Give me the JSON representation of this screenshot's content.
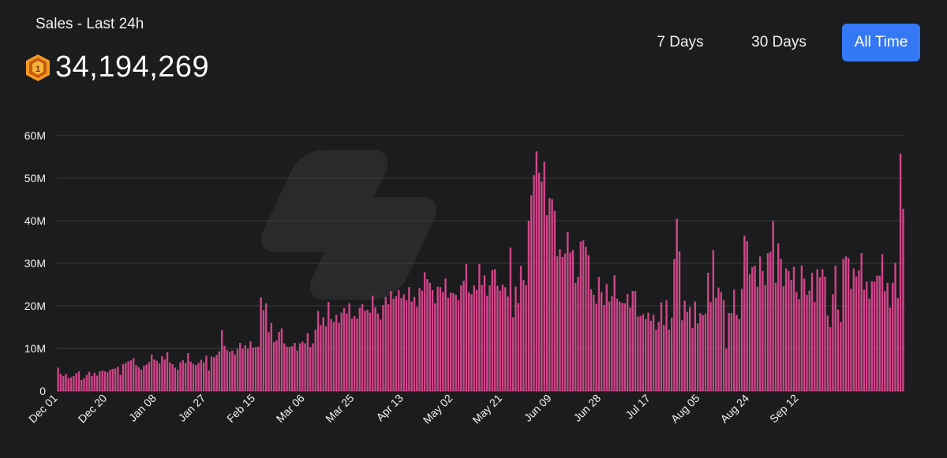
{
  "header": {
    "title": "Sales - Last 24h",
    "total": "34,194,269",
    "coin_icon": "coin-icon"
  },
  "range_buttons": [
    {
      "label": "7 Days",
      "active": false
    },
    {
      "label": "30 Days",
      "active": false
    },
    {
      "label": "All Time",
      "active": true
    }
  ],
  "colors": {
    "bar": "#d0468a",
    "active_button": "#3478f6",
    "background": "#1c1c1e"
  },
  "chart_data": {
    "type": "bar",
    "title": "",
    "xlabel": "",
    "ylabel": "",
    "ylim": [
      0,
      60
    ],
    "y_ticks": [
      0,
      10,
      20,
      30,
      40,
      50,
      60
    ],
    "y_tick_labels": [
      "0",
      "10M",
      "20M",
      "30M",
      "40M",
      "50M",
      "60M"
    ],
    "grid": true,
    "x_tick_labels": [
      "Dec 01",
      "Dec 20",
      "Jan 08",
      "Jan 27",
      "Feb 15",
      "Mar 06",
      "Mar 25",
      "Apr 13",
      "May 02",
      "May 21",
      "Jun 09",
      "Jun 28",
      "Jul 17",
      "Aug 05",
      "Aug 24",
      "Sep 12"
    ],
    "x_tick_every": 19,
    "units": "millions",
    "values": [
      5.5,
      4,
      3.5,
      4,
      3,
      3.2,
      3.5,
      4.2,
      4.6,
      2.6,
      3,
      3.8,
      4.5,
      3.5,
      4.3,
      3.6,
      4.6,
      4.8,
      4.6,
      4.4,
      5,
      5.2,
      5.3,
      5.7,
      3.8,
      6.3,
      6.6,
      7,
      7.2,
      7.7,
      6.1,
      5.6,
      5,
      5.9,
      6.2,
      6.8,
      8.6,
      7.4,
      7.1,
      6.5,
      8.2,
      7.4,
      9.1,
      6.7,
      6.3,
      5.5,
      5,
      6.7,
      7.2,
      6.6,
      8.9,
      6.9,
      6.4,
      6.1,
      6.6,
      7.3,
      6.7,
      8.3,
      4.8,
      8.1,
      7.9,
      8.5,
      9.3,
      14.3,
      10.6,
      9.6,
      9.2,
      9.5,
      8.6,
      9.9,
      11.3,
      9.9,
      10.7,
      9.9,
      11.7,
      10.2,
      10.3,
      10.4,
      22,
      19,
      20.6,
      13.8,
      16,
      11.5,
      11.9,
      13.9,
      14.7,
      11.2,
      10.4,
      10.4,
      10.5,
      11.3,
      9.5,
      11.2,
      11.6,
      11.2,
      13.6,
      10.3,
      11.2,
      14.4,
      18.8,
      15.5,
      17.3,
      15.2,
      20.9,
      16.9,
      16.2,
      17.9,
      16,
      18.4,
      19.5,
      18.2,
      20.6,
      17,
      17.6,
      17,
      19.5,
      20.4,
      18.9,
      19.1,
      18.4,
      22.4,
      19.7,
      18.2,
      16.8,
      20.2,
      22.1,
      20.4,
      23.5,
      21.7,
      22.3,
      23.7,
      21.8,
      22.7,
      21.3,
      24.4,
      21,
      22.1,
      19.7,
      24.2,
      23.6,
      27.9,
      26.3,
      25.4,
      23.7,
      20.6,
      24.5,
      24.4,
      23.2,
      26.4,
      21.9,
      23.1,
      23,
      22.6,
      21.3,
      24.8,
      25.9,
      29.8,
      23.2,
      22.7,
      24.8,
      23.7,
      29.8,
      24.9,
      27.2,
      22.4,
      24.8,
      28.4,
      28.6,
      24.7,
      23.6,
      25,
      24.4,
      22.2,
      33.7,
      17.3,
      24.5,
      20.7,
      29.4,
      26.1,
      24.9,
      40,
      46,
      50.7,
      56.3,
      51.3,
      49.2,
      53.9,
      41.3,
      45.3,
      45.1,
      42.3,
      31.6,
      33.3,
      31.5,
      32.3,
      37.4,
      32.5,
      33.1,
      25.4,
      26.8,
      35.1,
      35.4,
      33.9,
      31.9,
      23.9,
      22.6,
      20.5,
      26.8,
      23.2,
      20.2,
      25.1,
      21,
      22.3,
      27.2,
      21.7,
      21,
      20.7,
      20.6,
      22.8,
      19.6,
      23.5,
      23.5,
      17.5,
      17.6,
      18,
      16.9,
      18.4,
      16.5,
      17.9,
      14.4,
      16.2,
      20.8,
      15.5,
      21.3,
      14.4,
      17.2,
      31,
      40.5,
      32.8,
      16.6,
      21.2,
      18.6,
      19.7,
      14.8,
      21,
      15.9,
      18.3,
      17.8,
      18.2,
      27.8,
      20.9,
      33.1,
      21.9,
      24.3,
      23.3,
      21.3,
      9.9,
      18.3,
      18.3,
      23.8,
      17.9,
      16.9,
      24,
      36.5,
      35.2,
      27.4,
      29.1,
      29.4,
      24.5,
      31.6,
      28.2,
      24.9,
      32.4,
      32.7,
      40,
      25.4,
      34.7,
      31,
      24.6,
      28.8,
      28.2,
      26.1,
      29.2,
      23.3,
      21.6,
      29.5,
      26.4,
      22.6,
      23.6,
      27.8,
      20.9,
      28.6,
      26.7,
      28.6,
      26.9,
      17.7,
      15,
      22.7,
      29.4,
      19.1,
      16.2,
      31,
      31.6,
      31.2,
      24,
      28.8,
      26.9,
      28.3,
      32.4,
      23.8,
      25.7,
      21.7,
      25.8,
      25.7,
      27.1,
      27.1,
      32.1,
      23.5,
      25.4,
      19.6,
      25.4,
      30.1,
      21.8,
      55.8,
      42.8
    ]
  }
}
